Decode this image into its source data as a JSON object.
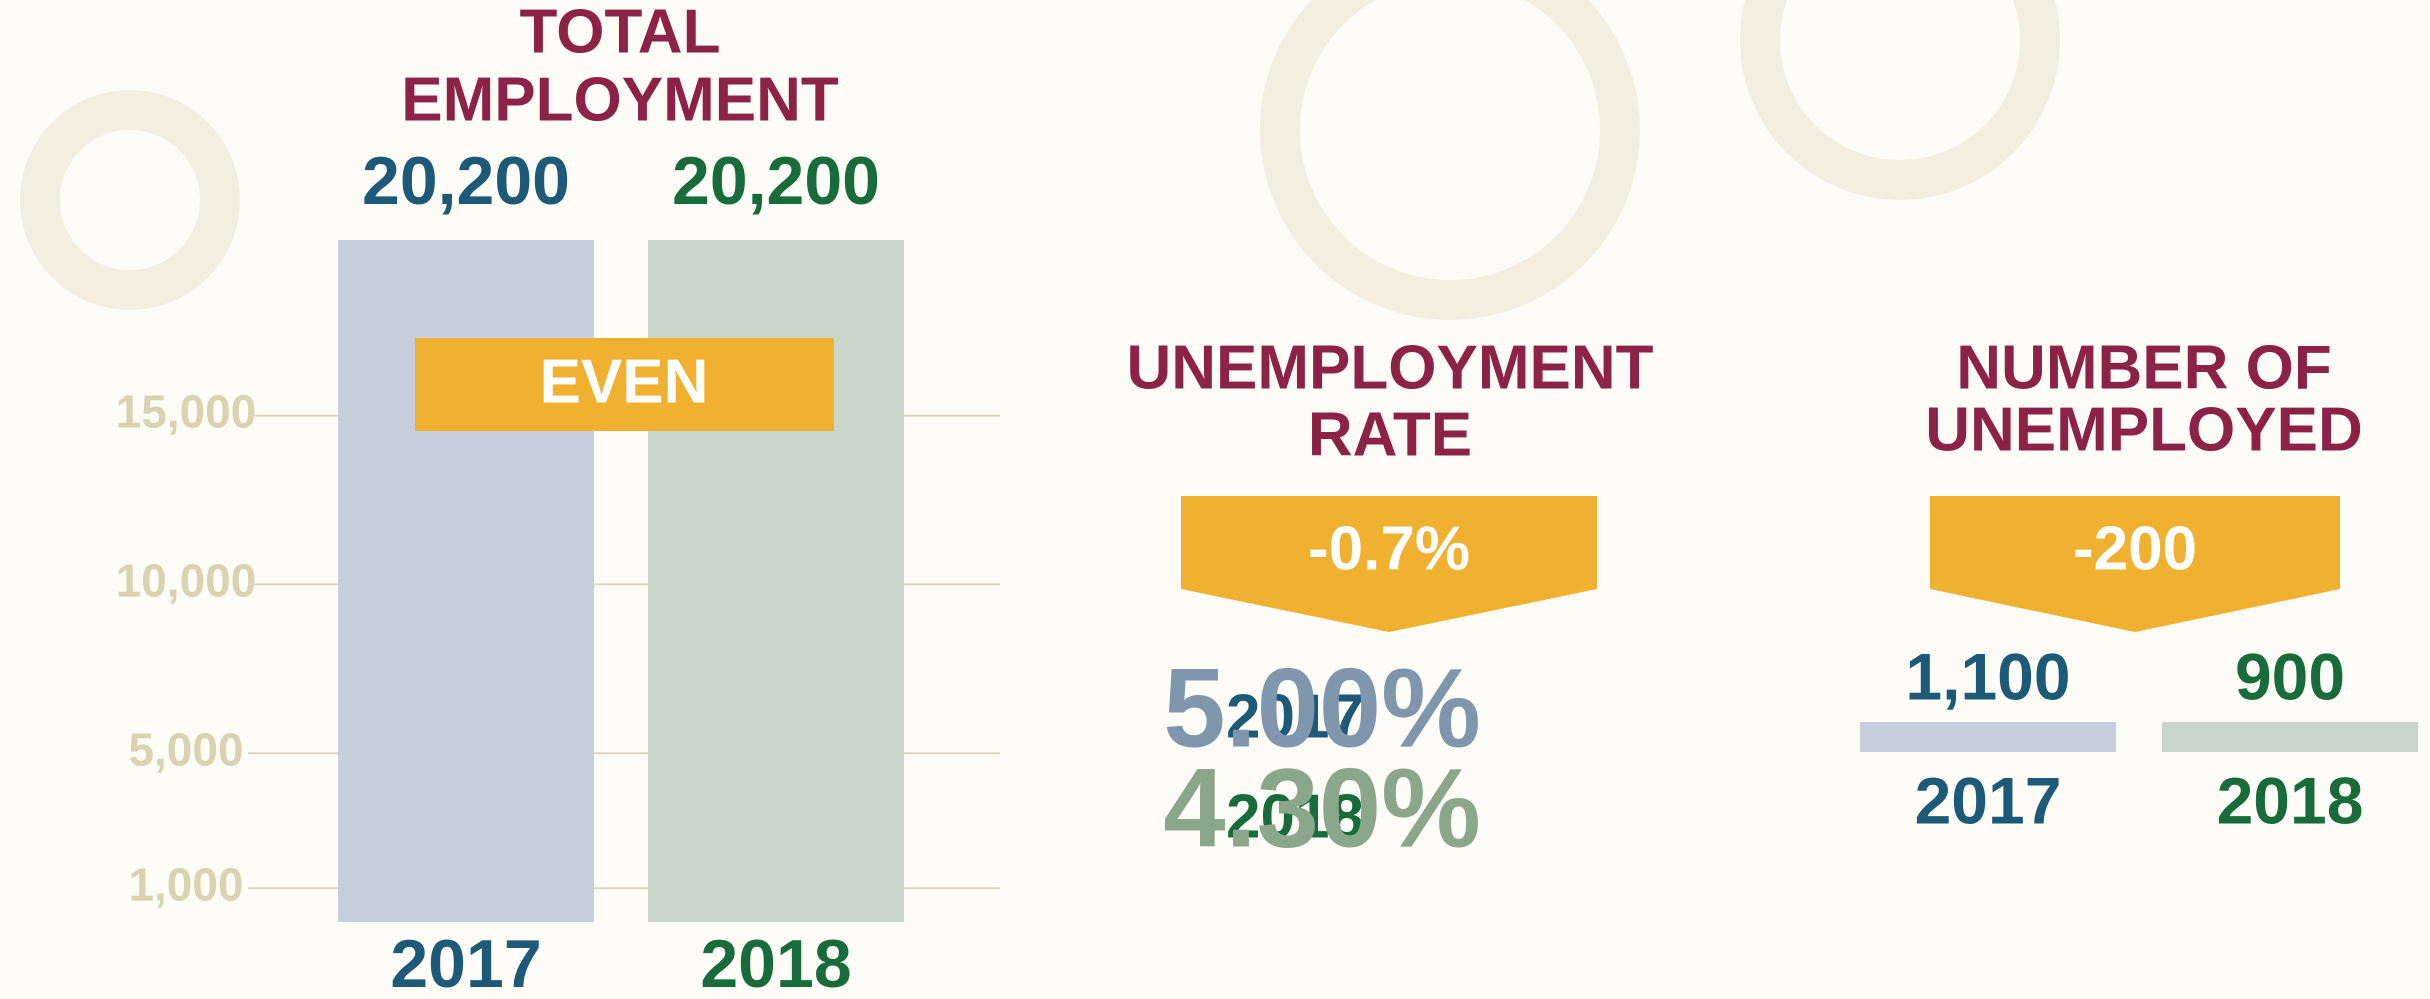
{
  "chart_data": [
    {
      "type": "bar",
      "title": [
        "TOTAL",
        "EMPLOYMENT"
      ],
      "categories": [
        "2017",
        "2018"
      ],
      "values": [
        20200,
        20200
      ],
      "value_labels": [
        "20,200",
        "20,200"
      ],
      "colors": [
        "#c6d0dd",
        "#c8d7c9"
      ],
      "label_colors": [
        "#1d5a78",
        "#186b3a"
      ],
      "annotation": "EVEN",
      "ylim": [
        0,
        21000
      ],
      "yticks": [
        {
          "value": 1000,
          "label": "1,000"
        },
        {
          "value": 5000,
          "label": "5,000"
        },
        {
          "value": 10000,
          "label": "10,000"
        },
        {
          "value": 15000,
          "label": "15,000"
        }
      ],
      "grid": true
    },
    {
      "type": "rate",
      "title": [
        "UNEMPLOYMENT",
        "RATE"
      ],
      "change": "-0.7%",
      "categories": [
        "2017",
        "2018"
      ],
      "values": [
        5.0,
        4.3
      ],
      "value_labels": [
        "5.00%",
        "4.30%"
      ],
      "label_colors": [
        "#1d5a78",
        "#186b3a"
      ],
      "value_colors": [
        "#7f96ac",
        "#8aa78b"
      ]
    },
    {
      "type": "count",
      "title": [
        "NUMBER OF",
        "UNEMPLOYED"
      ],
      "change": "-200",
      "categories": [
        "2017",
        "2018"
      ],
      "values": [
        1100,
        900
      ],
      "value_labels": [
        "1,100",
        "900"
      ],
      "colors": [
        "#c6d0dd",
        "#c8d7c9"
      ],
      "label_colors": [
        "#1d5a78",
        "#186b3a"
      ]
    }
  ]
}
